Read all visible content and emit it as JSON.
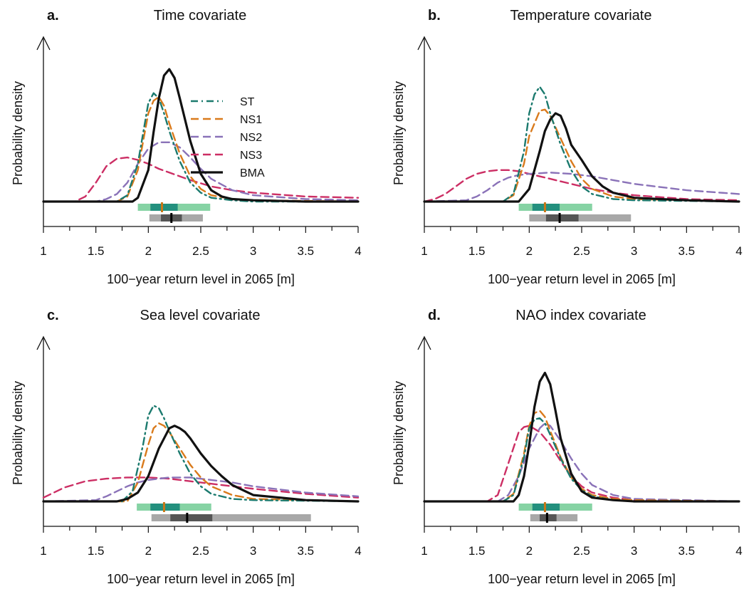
{
  "figure": {
    "legend": [
      {
        "key": "ST",
        "label": "ST",
        "color": "#1b7a6e",
        "dash": "dotdash"
      },
      {
        "key": "NS1",
        "label": "NS1",
        "color": "#d97a1c",
        "dash": "dashed"
      },
      {
        "key": "NS2",
        "label": "NS2",
        "color": "#8a72b8",
        "dash": "dashed"
      },
      {
        "key": "NS3",
        "label": "NS3",
        "color": "#cc2e64",
        "dash": "dashed"
      },
      {
        "key": "BMA",
        "label": "BMA",
        "color": "#111111",
        "dash": "solid"
      }
    ]
  },
  "chart_data": [
    {
      "type": "line",
      "panel": "a.",
      "title": "Time covariate",
      "xlabel": "100−year return level in 2065 [m]",
      "ylabel": "Probability density",
      "xlim": [
        1,
        4
      ],
      "xticks": [
        "1",
        "1.5",
        "2",
        "2.5",
        "3",
        "3.5",
        "4"
      ],
      "series": [
        {
          "name": "ST",
          "x": [
            1.0,
            1.7,
            1.8,
            1.9,
            2.0,
            2.05,
            2.1,
            2.15,
            2.2,
            2.3,
            2.4,
            2.5,
            2.6,
            2.8,
            3.0,
            4.0
          ],
          "y": [
            0.0,
            0.0,
            0.05,
            0.3,
            0.78,
            0.86,
            0.82,
            0.7,
            0.56,
            0.32,
            0.15,
            0.07,
            0.03,
            0.01,
            0.0,
            0.0
          ]
        },
        {
          "name": "NS1",
          "x": [
            1.0,
            1.7,
            1.8,
            1.9,
            2.0,
            2.05,
            2.1,
            2.15,
            2.2,
            2.3,
            2.4,
            2.5,
            2.6,
            2.8,
            3.0,
            4.0
          ],
          "y": [
            0.0,
            0.0,
            0.04,
            0.25,
            0.7,
            0.8,
            0.83,
            0.76,
            0.62,
            0.38,
            0.2,
            0.1,
            0.05,
            0.02,
            0.01,
            0.0
          ]
        },
        {
          "name": "NS2",
          "x": [
            1.0,
            1.5,
            1.6,
            1.7,
            1.8,
            1.9,
            2.0,
            2.1,
            2.2,
            2.3,
            2.4,
            2.5,
            2.6,
            2.8,
            3.0,
            3.5,
            4.0
          ],
          "y": [
            0.0,
            0.0,
            0.02,
            0.06,
            0.15,
            0.3,
            0.42,
            0.47,
            0.47,
            0.43,
            0.35,
            0.26,
            0.18,
            0.09,
            0.05,
            0.02,
            0.01
          ]
        },
        {
          "name": "NS3",
          "x": [
            1.0,
            1.3,
            1.4,
            1.5,
            1.6,
            1.7,
            1.8,
            1.9,
            2.0,
            2.1,
            2.2,
            2.4,
            2.6,
            2.8,
            3.0,
            3.5,
            4.0
          ],
          "y": [
            0.0,
            0.0,
            0.04,
            0.15,
            0.28,
            0.34,
            0.35,
            0.33,
            0.3,
            0.26,
            0.23,
            0.17,
            0.12,
            0.09,
            0.07,
            0.04,
            0.03
          ]
        },
        {
          "name": "BMA",
          "x": [
            1.0,
            1.85,
            1.9,
            2.0,
            2.05,
            2.1,
            2.15,
            2.2,
            2.25,
            2.3,
            2.4,
            2.5,
            2.6,
            2.7,
            2.8,
            3.0,
            3.5,
            4.0
          ],
          "y": [
            0.0,
            0.0,
            0.03,
            0.25,
            0.55,
            0.82,
            1.0,
            1.05,
            0.98,
            0.82,
            0.48,
            0.22,
            0.09,
            0.04,
            0.02,
            0.01,
            0.0,
            0.0
          ]
        }
      ],
      "intervals": [
        {
          "name": "ST",
          "wide": [
            1.9,
            2.59
          ],
          "narrow": [
            2.02,
            2.28
          ],
          "median": 2.13
        },
        {
          "name": "BMA",
          "wide": [
            2.01,
            2.52
          ],
          "narrow": [
            2.12,
            2.32
          ],
          "median": 2.22
        }
      ]
    },
    {
      "type": "line",
      "panel": "b.",
      "title": "Temperature covariate",
      "xlabel": "100−year return level in 2065 [m]",
      "ylabel": "Probability density",
      "xlim": [
        1,
        4
      ],
      "xticks": [
        "1",
        "1.5",
        "2",
        "2.5",
        "3",
        "3.5",
        "4"
      ],
      "series": [
        {
          "name": "ST",
          "x": [
            1.0,
            1.75,
            1.85,
            1.95,
            2.0,
            2.05,
            2.1,
            2.15,
            2.2,
            2.3,
            2.4,
            2.5,
            2.6,
            2.8,
            3.0,
            4.0
          ],
          "y": [
            0.0,
            0.0,
            0.06,
            0.4,
            0.7,
            0.85,
            0.91,
            0.85,
            0.7,
            0.45,
            0.25,
            0.12,
            0.06,
            0.02,
            0.01,
            0.0
          ]
        },
        {
          "name": "NS1",
          "x": [
            1.0,
            1.75,
            1.85,
            1.95,
            2.0,
            2.1,
            2.15,
            2.2,
            2.3,
            2.4,
            2.5,
            2.6,
            2.8,
            3.0,
            3.5,
            4.0
          ],
          "y": [
            0.0,
            0.0,
            0.05,
            0.3,
            0.52,
            0.72,
            0.73,
            0.68,
            0.5,
            0.32,
            0.18,
            0.1,
            0.04,
            0.02,
            0.01,
            0.0
          ]
        },
        {
          "name": "NS2",
          "x": [
            1.0,
            1.4,
            1.5,
            1.6,
            1.7,
            1.8,
            1.9,
            2.0,
            2.2,
            2.4,
            2.6,
            2.8,
            3.0,
            3.5,
            4.0
          ],
          "y": [
            0.0,
            0.01,
            0.04,
            0.09,
            0.15,
            0.19,
            0.21,
            0.22,
            0.23,
            0.22,
            0.2,
            0.17,
            0.14,
            0.09,
            0.06
          ]
        },
        {
          "name": "NS3",
          "x": [
            1.0,
            1.1,
            1.2,
            1.3,
            1.4,
            1.5,
            1.6,
            1.7,
            1.8,
            1.9,
            2.0,
            2.2,
            2.4,
            2.6,
            2.8,
            3.0,
            3.5,
            4.0
          ],
          "y": [
            0.0,
            0.02,
            0.06,
            0.12,
            0.18,
            0.22,
            0.24,
            0.25,
            0.25,
            0.24,
            0.22,
            0.18,
            0.14,
            0.1,
            0.07,
            0.05,
            0.02,
            0.01
          ]
        },
        {
          "name": "BMA",
          "x": [
            1.0,
            1.9,
            2.0,
            2.1,
            2.15,
            2.2,
            2.25,
            2.3,
            2.35,
            2.4,
            2.5,
            2.6,
            2.7,
            2.8,
            3.0,
            3.5,
            4.0
          ],
          "y": [
            0.0,
            0.0,
            0.1,
            0.4,
            0.56,
            0.65,
            0.7,
            0.68,
            0.58,
            0.45,
            0.33,
            0.2,
            0.12,
            0.07,
            0.03,
            0.01,
            0.0
          ]
        }
      ],
      "intervals": [
        {
          "name": "ST",
          "wide": [
            1.9,
            2.6
          ],
          "narrow": [
            2.03,
            2.29
          ],
          "median": 2.15
        },
        {
          "name": "BMA",
          "wide": [
            2.0,
            2.97
          ],
          "narrow": [
            2.16,
            2.47
          ],
          "median": 2.29
        }
      ]
    },
    {
      "type": "line",
      "panel": "c.",
      "title": "Sea level covariate",
      "xlabel": "100−year return level in 2065 [m]",
      "ylabel": "Probability density",
      "xlim": [
        1,
        4
      ],
      "xticks": [
        "1",
        "1.5",
        "2",
        "2.5",
        "3",
        "3.5",
        "4"
      ],
      "series": [
        {
          "name": "ST",
          "x": [
            1.0,
            1.75,
            1.85,
            1.95,
            2.0,
            2.05,
            2.1,
            2.15,
            2.2,
            2.3,
            2.4,
            2.5,
            2.6,
            2.8,
            3.0,
            4.0
          ],
          "y": [
            0.0,
            0.0,
            0.08,
            0.45,
            0.68,
            0.76,
            0.74,
            0.66,
            0.56,
            0.38,
            0.22,
            0.12,
            0.06,
            0.02,
            0.01,
            0.0
          ]
        },
        {
          "name": "NS1",
          "x": [
            1.0,
            1.8,
            1.9,
            2.0,
            2.05,
            2.1,
            2.15,
            2.2,
            2.3,
            2.4,
            2.5,
            2.6,
            2.8,
            3.0,
            3.5,
            4.0
          ],
          "y": [
            0.0,
            0.0,
            0.15,
            0.45,
            0.58,
            0.62,
            0.6,
            0.55,
            0.42,
            0.29,
            0.19,
            0.12,
            0.05,
            0.02,
            0.01,
            0.0
          ]
        },
        {
          "name": "NS2",
          "x": [
            1.0,
            1.5,
            1.6,
            1.7,
            1.8,
            1.9,
            2.0,
            2.2,
            2.4,
            2.6,
            2.8,
            3.0,
            3.5,
            4.0
          ],
          "y": [
            0.0,
            0.01,
            0.04,
            0.08,
            0.12,
            0.15,
            0.17,
            0.19,
            0.19,
            0.17,
            0.15,
            0.12,
            0.07,
            0.04
          ]
        },
        {
          "name": "NS3",
          "x": [
            1.0,
            1.1,
            1.2,
            1.4,
            1.6,
            1.8,
            2.0,
            2.2,
            2.4,
            2.6,
            2.8,
            3.0,
            3.5,
            4.0
          ],
          "y": [
            0.03,
            0.07,
            0.11,
            0.16,
            0.18,
            0.19,
            0.19,
            0.18,
            0.16,
            0.14,
            0.12,
            0.1,
            0.06,
            0.03
          ]
        },
        {
          "name": "BMA",
          "x": [
            1.0,
            1.7,
            1.8,
            1.9,
            2.0,
            2.1,
            2.2,
            2.25,
            2.3,
            2.35,
            2.4,
            2.5,
            2.6,
            2.7,
            2.8,
            3.0,
            3.5,
            4.0
          ],
          "y": [
            0.0,
            0.0,
            0.02,
            0.07,
            0.2,
            0.42,
            0.58,
            0.6,
            0.58,
            0.55,
            0.5,
            0.38,
            0.28,
            0.2,
            0.13,
            0.05,
            0.01,
            0.0
          ]
        }
      ],
      "intervals": [
        {
          "name": "ST",
          "wide": [
            1.89,
            2.6
          ],
          "narrow": [
            2.02,
            2.3
          ],
          "median": 2.15
        },
        {
          "name": "BMA",
          "wide": [
            2.03,
            3.55
          ],
          "narrow": [
            2.21,
            2.61
          ],
          "median": 2.37
        }
      ]
    },
    {
      "type": "line",
      "panel": "d.",
      "title": "NAO index covariate",
      "xlabel": "100−year return level in 2065 [m]",
      "ylabel": "Probability density",
      "xlim": [
        1,
        4
      ],
      "xticks": [
        "1",
        "1.5",
        "2",
        "2.5",
        "3",
        "3.5",
        "4"
      ],
      "series": [
        {
          "name": "ST",
          "x": [
            1.0,
            1.75,
            1.85,
            1.95,
            2.0,
            2.05,
            2.1,
            2.15,
            2.2,
            2.3,
            2.4,
            2.5,
            2.6,
            2.8,
            3.0,
            4.0
          ],
          "y": [
            0.0,
            0.0,
            0.05,
            0.35,
            0.58,
            0.65,
            0.66,
            0.62,
            0.53,
            0.34,
            0.18,
            0.09,
            0.04,
            0.01,
            0.0,
            0.0
          ]
        },
        {
          "name": "NS1",
          "x": [
            1.0,
            1.75,
            1.85,
            1.95,
            2.0,
            2.05,
            2.1,
            2.15,
            2.2,
            2.3,
            2.4,
            2.5,
            2.6,
            2.8,
            3.0,
            4.0
          ],
          "y": [
            0.0,
            0.0,
            0.06,
            0.38,
            0.6,
            0.7,
            0.72,
            0.67,
            0.56,
            0.35,
            0.19,
            0.1,
            0.05,
            0.02,
            0.01,
            0.0
          ]
        },
        {
          "name": "NS2",
          "x": [
            1.0,
            1.7,
            1.8,
            1.9,
            2.0,
            2.1,
            2.15,
            2.2,
            2.3,
            2.4,
            2.5,
            2.6,
            2.8,
            3.0,
            3.5,
            4.0
          ],
          "y": [
            0.0,
            0.0,
            0.05,
            0.2,
            0.42,
            0.58,
            0.62,
            0.6,
            0.48,
            0.34,
            0.22,
            0.13,
            0.05,
            0.02,
            0.01,
            0.0
          ]
        },
        {
          "name": "NS3",
          "x": [
            1.0,
            1.6,
            1.7,
            1.8,
            1.9,
            1.95,
            2.0,
            2.1,
            2.2,
            2.3,
            2.4,
            2.5,
            2.6,
            2.8,
            3.0,
            4.0
          ],
          "y": [
            0.0,
            0.0,
            0.05,
            0.3,
            0.55,
            0.59,
            0.6,
            0.55,
            0.45,
            0.32,
            0.2,
            0.12,
            0.07,
            0.03,
            0.01,
            0.0
          ]
        },
        {
          "name": "BMA",
          "x": [
            1.0,
            1.85,
            1.9,
            1.95,
            2.0,
            2.05,
            2.1,
            2.15,
            2.2,
            2.25,
            2.3,
            2.4,
            2.5,
            2.6,
            2.8,
            3.0,
            4.0
          ],
          "y": [
            0.0,
            0.0,
            0.05,
            0.2,
            0.45,
            0.75,
            0.95,
            1.02,
            0.93,
            0.72,
            0.5,
            0.22,
            0.08,
            0.03,
            0.01,
            0.0,
            0.0
          ]
        }
      ],
      "intervals": [
        {
          "name": "ST",
          "wide": [
            1.9,
            2.6
          ],
          "narrow": [
            2.03,
            2.29
          ],
          "median": 2.15
        },
        {
          "name": "BMA",
          "wide": [
            2.01,
            2.46
          ],
          "narrow": [
            2.1,
            2.26
          ],
          "median": 2.17
        }
      ]
    }
  ]
}
